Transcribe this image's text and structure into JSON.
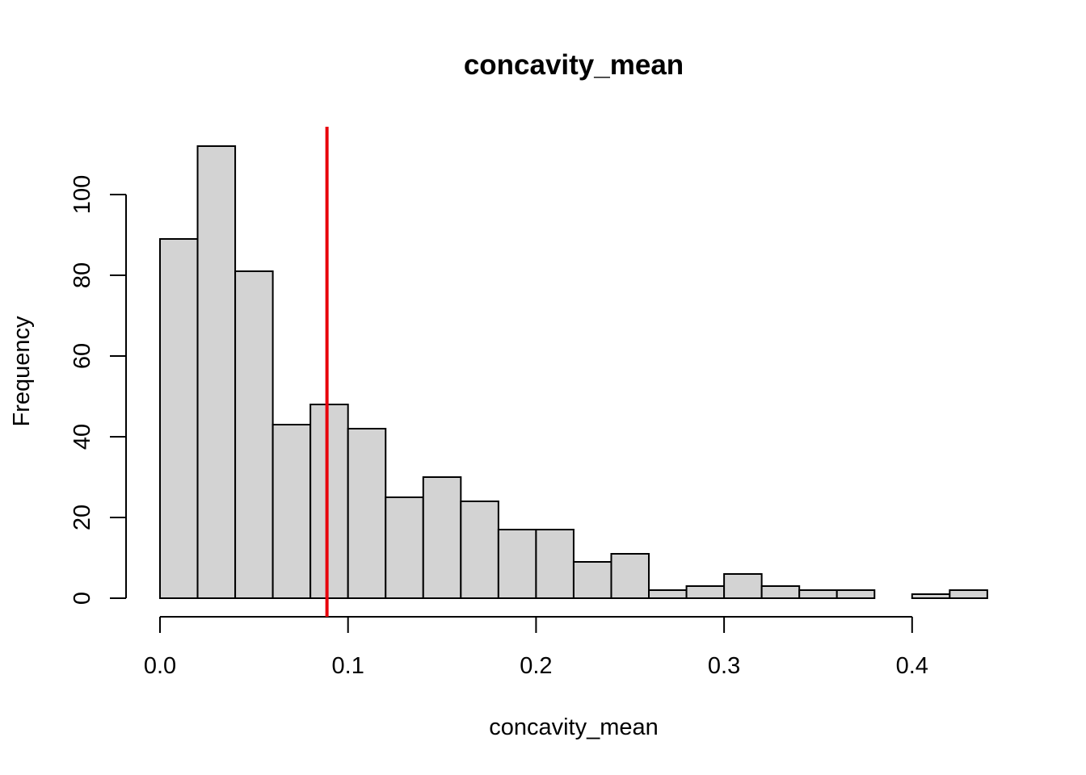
{
  "chart_data": {
    "type": "bar",
    "subtype": "histogram",
    "title": "concavity_mean",
    "xlabel": "concavity_mean",
    "ylabel": "Frequency",
    "bin_width": 0.02,
    "bins": [
      {
        "start": 0.0,
        "end": 0.02,
        "count": 89
      },
      {
        "start": 0.02,
        "end": 0.04,
        "count": 112
      },
      {
        "start": 0.04,
        "end": 0.06,
        "count": 81
      },
      {
        "start": 0.06,
        "end": 0.08,
        "count": 43
      },
      {
        "start": 0.08,
        "end": 0.1,
        "count": 48
      },
      {
        "start": 0.1,
        "end": 0.12,
        "count": 42
      },
      {
        "start": 0.12,
        "end": 0.14,
        "count": 25
      },
      {
        "start": 0.14,
        "end": 0.16,
        "count": 30
      },
      {
        "start": 0.16,
        "end": 0.18,
        "count": 24
      },
      {
        "start": 0.18,
        "end": 0.2,
        "count": 17
      },
      {
        "start": 0.2,
        "end": 0.22,
        "count": 17
      },
      {
        "start": 0.22,
        "end": 0.24,
        "count": 9
      },
      {
        "start": 0.24,
        "end": 0.26,
        "count": 11
      },
      {
        "start": 0.26,
        "end": 0.28,
        "count": 2
      },
      {
        "start": 0.28,
        "end": 0.3,
        "count": 3
      },
      {
        "start": 0.3,
        "end": 0.32,
        "count": 6
      },
      {
        "start": 0.32,
        "end": 0.34,
        "count": 3
      },
      {
        "start": 0.34,
        "end": 0.36,
        "count": 2
      },
      {
        "start": 0.36,
        "end": 0.38,
        "count": 2
      },
      {
        "start": 0.38,
        "end": 0.4,
        "count": 0
      },
      {
        "start": 0.4,
        "end": 0.42,
        "count": 1
      },
      {
        "start": 0.42,
        "end": 0.44,
        "count": 2
      }
    ],
    "x_ticks": [
      0.0,
      0.1,
      0.2,
      0.3,
      0.4
    ],
    "x_tick_labels": [
      "0.0",
      "0.1",
      "0.2",
      "0.3",
      "0.4"
    ],
    "y_ticks": [
      0,
      20,
      40,
      60,
      80,
      100
    ],
    "y_tick_labels": [
      "0",
      "20",
      "40",
      "60",
      "80",
      "100"
    ],
    "xlim": [
      0.0,
      0.44
    ],
    "ylim": [
      0,
      112
    ],
    "reference_line": {
      "x": 0.0888,
      "color": "#e8000b"
    },
    "bar_fill": "#d3d3d3",
    "bar_stroke": "#000000",
    "grid": false,
    "legend": "none"
  }
}
